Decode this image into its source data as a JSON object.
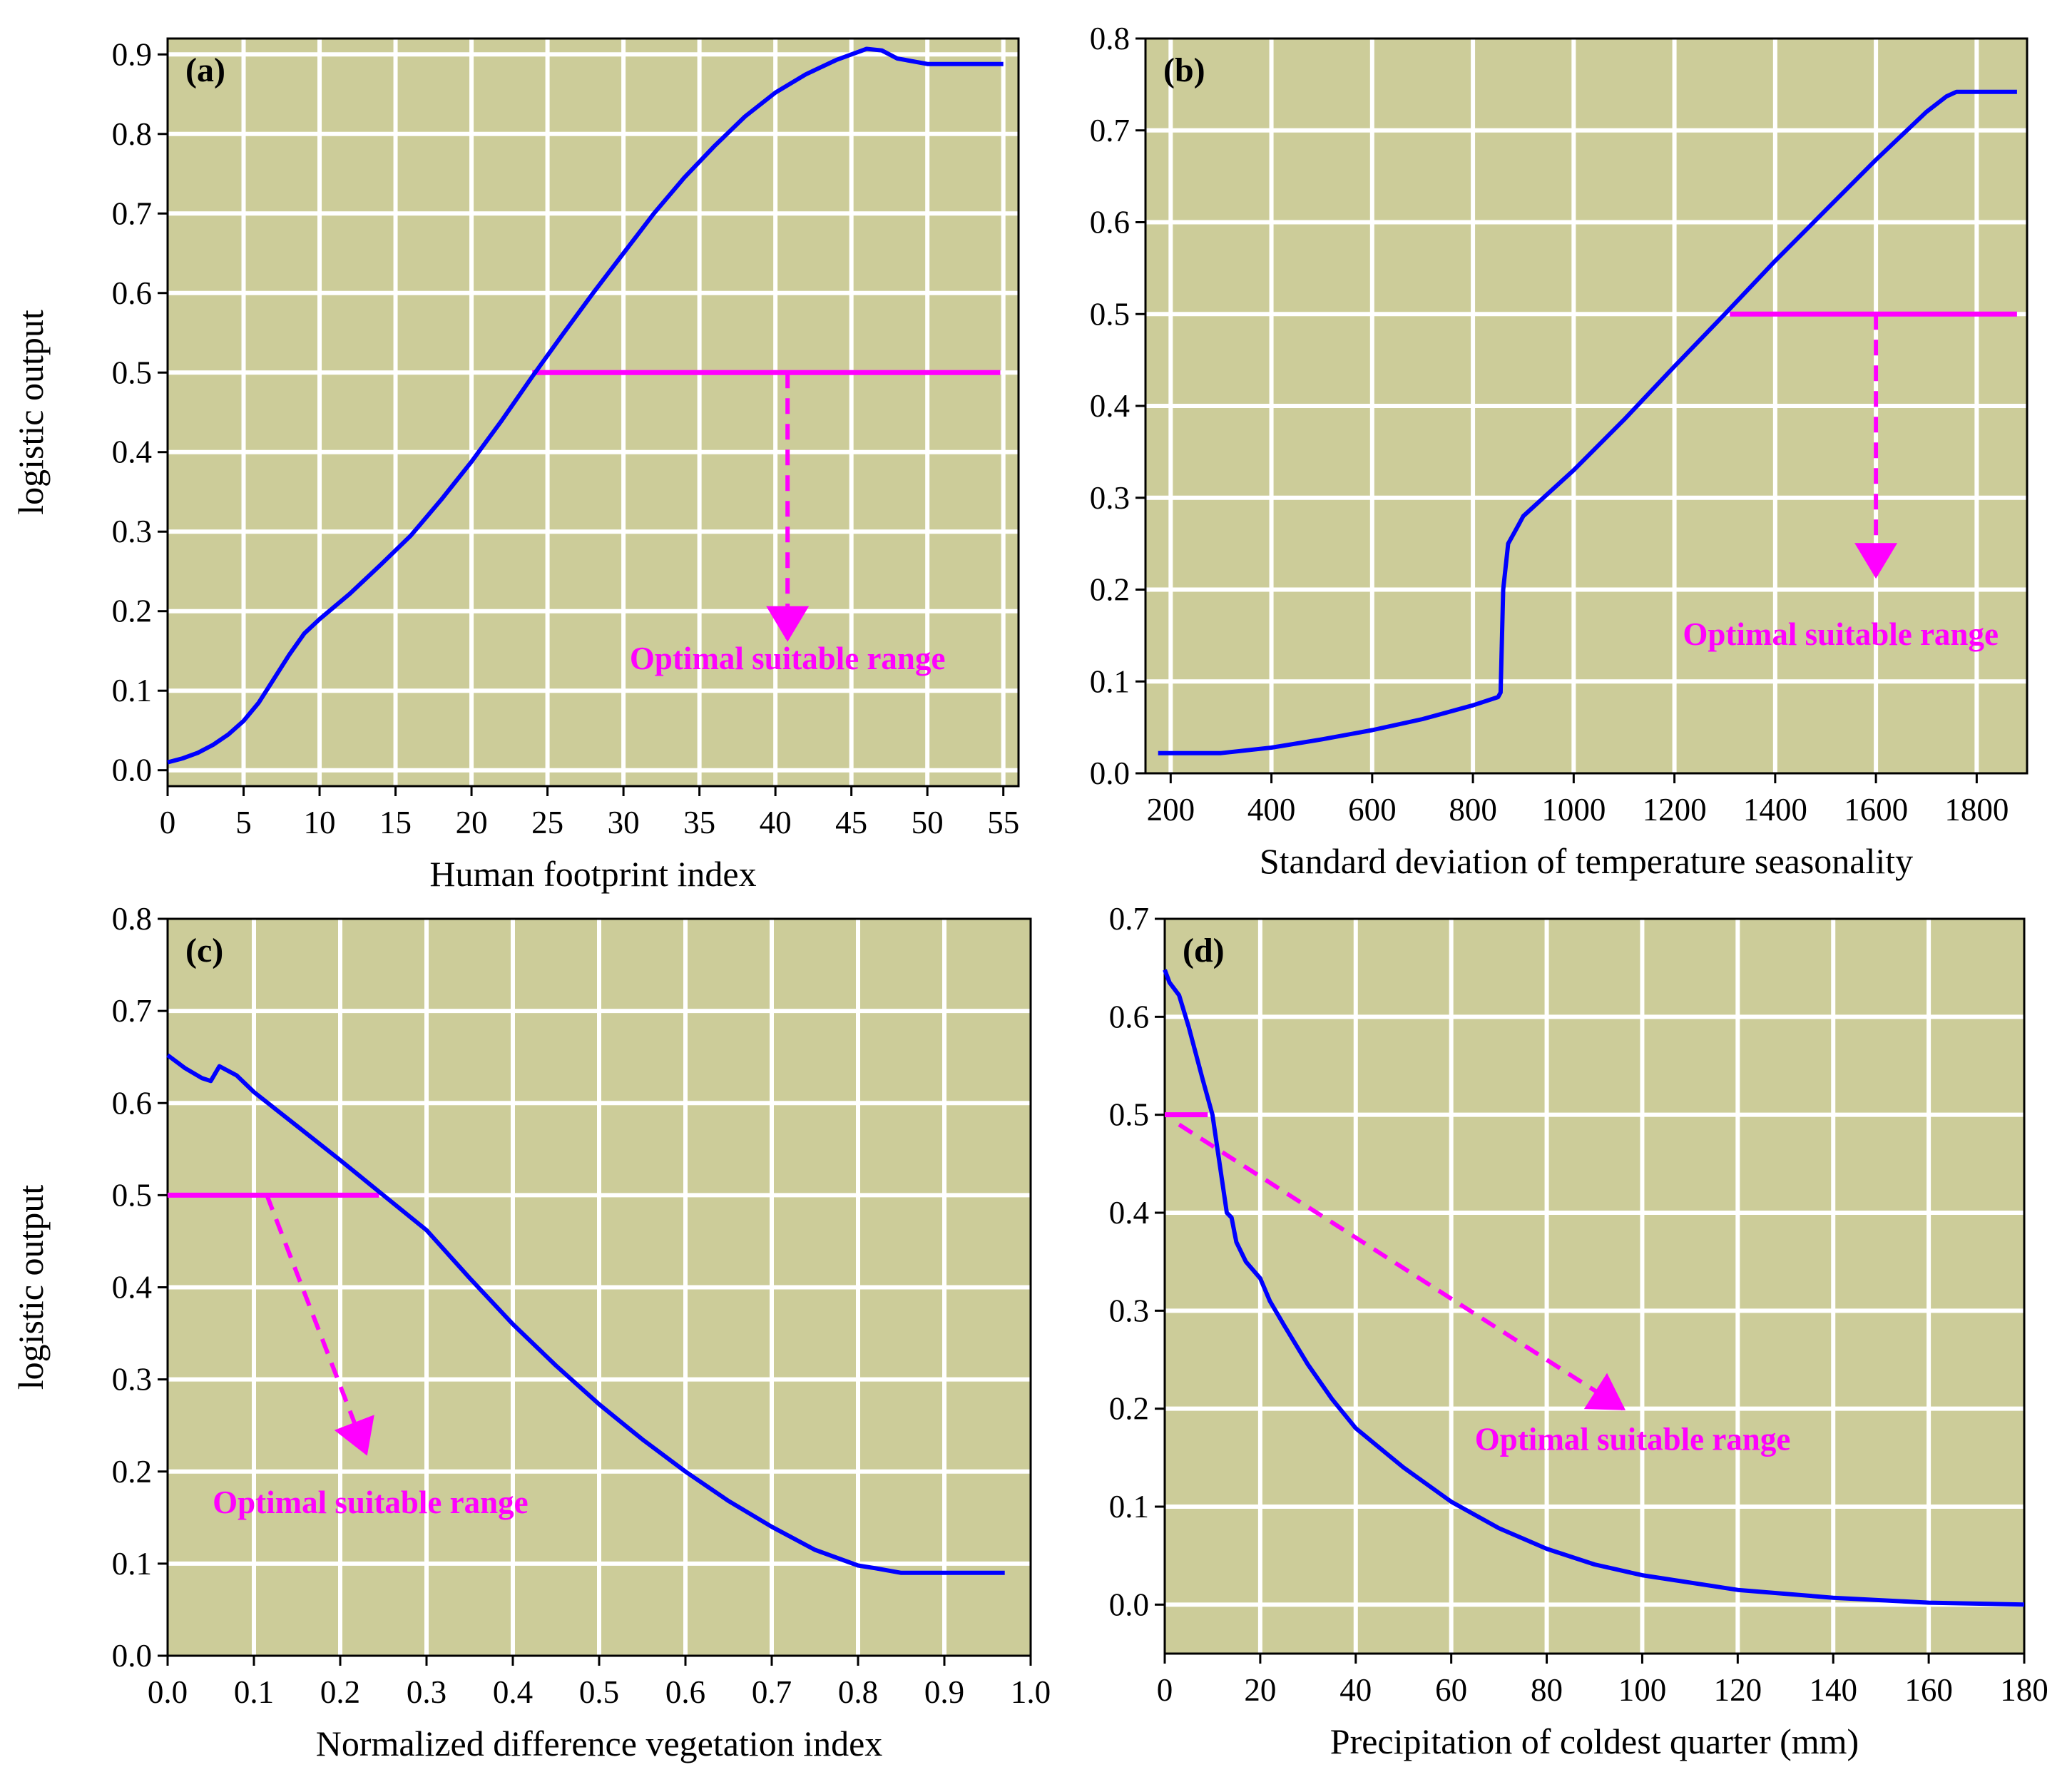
{
  "chart_data": [
    {
      "id": "a",
      "type": "line",
      "panel_label": "(a)",
      "xlabel": "Human footprint index",
      "ylabel": "logistic output",
      "xlim": [
        0,
        56
      ],
      "ylim": [
        -0.02,
        0.92
      ],
      "xticks": [
        0,
        5,
        10,
        15,
        20,
        25,
        30,
        35,
        40,
        45,
        50,
        55
      ],
      "xticklabels": [
        "0",
        "5",
        "10",
        "15",
        "20",
        "25",
        "30",
        "35",
        "40",
        "45",
        "50",
        "55"
      ],
      "yticks": [
        0,
        0.1,
        0.2,
        0.3,
        0.4,
        0.5,
        0.6,
        0.7,
        0.8,
        0.9
      ],
      "yticklabels": [
        "0.0",
        "0.1",
        "0.2",
        "0.3",
        "0.4",
        "0.5",
        "0.6",
        "0.7",
        "0.8",
        "0.9"
      ],
      "grid": true,
      "series": [
        {
          "color": "#0000ff",
          "x": [
            0,
            1,
            2,
            3,
            4,
            5,
            6,
            7,
            8,
            9,
            10,
            12,
            14,
            16,
            18,
            20,
            22,
            24,
            26,
            28,
            30,
            32,
            34,
            36,
            38,
            40,
            42,
            44,
            45,
            46,
            47,
            48,
            50,
            52,
            55
          ],
          "y": [
            0.01,
            0.015,
            0.022,
            0.032,
            0.045,
            0.062,
            0.085,
            0.115,
            0.145,
            0.172,
            0.19,
            0.222,
            0.258,
            0.295,
            0.34,
            0.388,
            0.44,
            0.495,
            0.548,
            0.6,
            0.65,
            0.7,
            0.745,
            0.785,
            0.822,
            0.852,
            0.875,
            0.893,
            0.9,
            0.907,
            0.905,
            0.895,
            0.888,
            0.888,
            0.888
          ]
        }
      ],
      "threshold": {
        "value": 0.5,
        "x_start": 24,
        "x_end": 54.8,
        "color": "#ff00ff"
      },
      "annotation": {
        "text": "Optimal suitable range",
        "color": "#ff00ff",
        "arrow_from": [
          40.8,
          0.5
        ],
        "arrow_to": [
          40.8,
          0.165
        ],
        "text_at": [
          40.8,
          0.127
        ]
      }
    },
    {
      "id": "b",
      "type": "line",
      "panel_label": "(b)",
      "xlabel": "Standard deviation of temperature seasonality",
      "ylabel": "",
      "xlim": [
        150,
        1900
      ],
      "ylim": [
        0,
        0.8
      ],
      "xticks": [
        200,
        400,
        600,
        800,
        1000,
        1200,
        1400,
        1600,
        1800
      ],
      "xticklabels": [
        "200",
        "400",
        "600",
        "800",
        "1000",
        "1200",
        "1400",
        "1600",
        "1800"
      ],
      "yticks": [
        0,
        0.1,
        0.2,
        0.3,
        0.4,
        0.5,
        0.6,
        0.7,
        0.8
      ],
      "yticklabels": [
        "0.0",
        "0.1",
        "0.2",
        "0.3",
        "0.4",
        "0.5",
        "0.6",
        "0.7",
        "0.8"
      ],
      "grid": true,
      "series": [
        {
          "color": "#0000ff",
          "x": [
            175,
            300,
            400,
            500,
            600,
            700,
            800,
            850,
            855,
            860,
            865,
            870,
            880,
            890,
            900,
            1000,
            1100,
            1200,
            1300,
            1400,
            1500,
            1600,
            1700,
            1740,
            1760,
            1800,
            1880
          ],
          "y": [
            0.022,
            0.022,
            0.028,
            0.037,
            0.047,
            0.059,
            0.074,
            0.083,
            0.088,
            0.2,
            0.225,
            0.25,
            0.26,
            0.27,
            0.28,
            0.33,
            0.385,
            0.443,
            0.5,
            0.558,
            0.613,
            0.668,
            0.72,
            0.737,
            0.742,
            0.742,
            0.742
          ]
        }
      ],
      "threshold": {
        "value": 0.5,
        "x_start": 1310,
        "x_end": 1880,
        "color": "#ff00ff"
      },
      "annotation": {
        "text": "Optimal suitable range",
        "color": "#ff00ff",
        "arrow_from": [
          1600,
          0.5
        ],
        "arrow_to": [
          1600,
          0.215
        ],
        "text_at": [
          1530,
          0.14
        ]
      }
    },
    {
      "id": "c",
      "type": "line",
      "panel_label": "(c)",
      "xlabel": "Normalized difference vegetation index",
      "ylabel": "logistic output",
      "xlim": [
        0,
        1.0
      ],
      "ylim": [
        0,
        0.8
      ],
      "xticks": [
        0,
        0.1,
        0.2,
        0.3,
        0.4,
        0.5,
        0.6,
        0.7,
        0.8,
        0.9,
        1.0
      ],
      "xticklabels": [
        "0.0",
        "0.1",
        "0.2",
        "0.3",
        "0.4",
        "0.5",
        "0.6",
        "0.7",
        "0.8",
        "0.9",
        "1.0"
      ],
      "yticks": [
        0,
        0.1,
        0.2,
        0.3,
        0.4,
        0.5,
        0.6,
        0.7,
        0.8
      ],
      "yticklabels": [
        "0.0",
        "0.1",
        "0.2",
        "0.3",
        "0.4",
        "0.5",
        "0.6",
        "0.7",
        "0.8"
      ],
      "grid": true,
      "series": [
        {
          "color": "#0000ff",
          "x": [
            0,
            0.02,
            0.04,
            0.05,
            0.06,
            0.08,
            0.1,
            0.15,
            0.2,
            0.25,
            0.3,
            0.35,
            0.4,
            0.45,
            0.5,
            0.55,
            0.6,
            0.65,
            0.7,
            0.75,
            0.8,
            0.82,
            0.85,
            0.9,
            0.97
          ],
          "y": [
            0.652,
            0.638,
            0.627,
            0.624,
            0.64,
            0.63,
            0.612,
            0.575,
            0.538,
            0.5,
            0.462,
            0.41,
            0.36,
            0.315,
            0.273,
            0.235,
            0.2,
            0.168,
            0.14,
            0.115,
            0.098,
            0.095,
            0.09,
            0.09,
            0.09
          ]
        }
      ],
      "threshold": {
        "value": 0.5,
        "x_start": 0,
        "x_end": 0.245,
        "color": "#ff00ff"
      },
      "annotation": {
        "text": "Optimal suitable range",
        "color": "#ff00ff",
        "arrow_from": [
          0.115,
          0.5
        ],
        "arrow_to": [
          0.23,
          0.22
        ],
        "text_at": [
          0.235,
          0.155
        ]
      }
    },
    {
      "id": "d",
      "type": "line",
      "panel_label": "(d)",
      "xlabel": "Precipitation of coldest quarter (mm)",
      "ylabel": "",
      "xlim": [
        0,
        180
      ],
      "ylim": [
        -0.05,
        0.7
      ],
      "xticks": [
        0,
        20,
        40,
        60,
        80,
        100,
        120,
        140,
        160,
        180
      ],
      "xticklabels": [
        "0",
        "20",
        "40",
        "60",
        "80",
        "100",
        "120",
        "140",
        "160",
        "180"
      ],
      "yticks": [
        0,
        0.1,
        0.2,
        0.3,
        0.4,
        0.5,
        0.6,
        0.7
      ],
      "yticklabels": [
        "0.0",
        "0.1",
        "0.2",
        "0.3",
        "0.4",
        "0.5",
        "0.6",
        "0.7"
      ],
      "grid": true,
      "series": [
        {
          "color": "#0000ff",
          "x": [
            0,
            1,
            3,
            5,
            8,
            10,
            13,
            14,
            15,
            17,
            20,
            22,
            25,
            30,
            35,
            40,
            50,
            60,
            70,
            80,
            90,
            100,
            120,
            140,
            160,
            180
          ],
          "y": [
            0.648,
            0.635,
            0.622,
            0.59,
            0.535,
            0.5,
            0.4,
            0.395,
            0.37,
            0.35,
            0.333,
            0.31,
            0.285,
            0.245,
            0.21,
            0.18,
            0.14,
            0.105,
            0.078,
            0.057,
            0.041,
            0.03,
            0.015,
            0.007,
            0.002,
            0.0
          ]
        }
      ],
      "threshold": {
        "value": 0.5,
        "x_start": 0,
        "x_end": 9,
        "color": "#ff00ff"
      },
      "annotation": {
        "text": "Optimal suitable range",
        "color": "#ff00ff",
        "arrow_from": [
          3,
          0.49
        ],
        "arrow_to": [
          96,
          0.2
        ],
        "text_at": [
          98,
          0.158
        ]
      }
    }
  ]
}
